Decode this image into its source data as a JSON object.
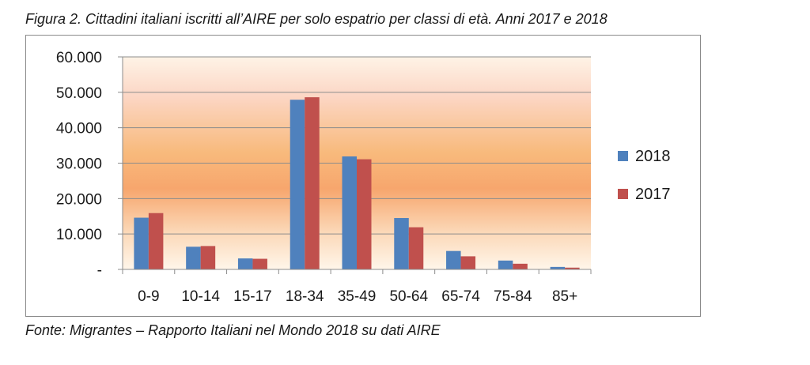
{
  "caption": {
    "title": "Figura 2. Cittadini italiani iscritti all’AIRE per solo espatrio per classi di età. Anni 2017 e 2018",
    "source": "Fonte: Migrantes – Rapporto Italiani nel Mondo 2018 su dati AIRE"
  },
  "chart_data": {
    "type": "bar",
    "categories": [
      "0-9",
      "10-14",
      "15-17",
      "18-34",
      "35-49",
      "50-64",
      "65-74",
      "75-84",
      "85+"
    ],
    "series": [
      {
        "name": "2018",
        "color": "#4f81bd",
        "values": [
          14600,
          6400,
          3100,
          47900,
          31900,
          14500,
          5200,
          2500,
          700
        ]
      },
      {
        "name": "2017",
        "color": "#c0504d",
        "values": [
          15900,
          6600,
          3000,
          48600,
          31100,
          11900,
          3700,
          1600,
          500
        ]
      }
    ],
    "ylim": [
      0,
      60000
    ],
    "yticks": [
      0,
      10000,
      20000,
      30000,
      40000,
      50000,
      60000
    ],
    "ytick_labels": [
      "-",
      "10.000",
      "20.000",
      "30.000",
      "40.000",
      "50.000",
      "60.000"
    ],
    "grid": true,
    "legend_position": "right",
    "background": "orange-gradient"
  }
}
